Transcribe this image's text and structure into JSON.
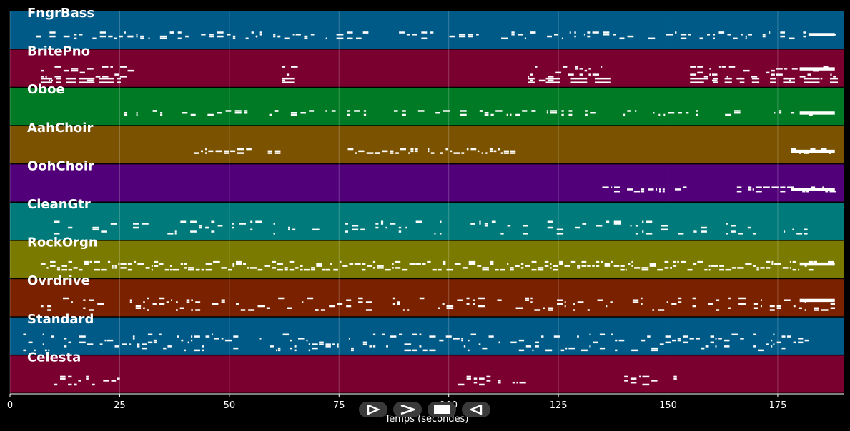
{
  "chart_data": {
    "type": "piano-roll",
    "xlabel": "Temps (secondes)",
    "xlim": [
      0,
      190
    ],
    "xticks": [
      0,
      25,
      50,
      75,
      100,
      125,
      150,
      175
    ],
    "grid": true,
    "note_color": "#ffffff",
    "tracks": [
      {
        "name": "FngrBass",
        "color": "#005a87",
        "pitch_range": [
          0,
          10
        ],
        "active": [
          [
            6,
            188
          ]
        ],
        "density": 0.55,
        "rows": [
          3,
          6
        ],
        "long_ends": [
          [
            182,
            188
          ]
        ]
      },
      {
        "name": "BritePno",
        "color": "#7a0030",
        "pitch_range": [
          0,
          10
        ],
        "active": [
          [
            7,
            27
          ],
          [
            62,
            65
          ],
          [
            118,
            135
          ],
          [
            155,
            188
          ]
        ],
        "density": 0.8,
        "rows": [
          1,
          8
        ],
        "long_ends": [
          [
            180,
            188
          ]
        ],
        "extra": [
          [
            7,
            188
          ]
        ]
      },
      {
        "name": "Oboe",
        "color": "#007a25",
        "pitch_range": [
          0,
          10
        ],
        "active": [
          [
            26,
            135
          ],
          [
            138,
            188
          ]
        ],
        "density": 0.45,
        "rows": [
          4,
          6
        ],
        "long_ends": [
          [
            180,
            188
          ]
        ]
      },
      {
        "name": "AahChoir",
        "color": "#7a5200",
        "pitch_range": [
          0,
          10
        ],
        "active": [
          [
            42,
            55
          ],
          [
            57,
            61
          ],
          [
            77,
            115
          ],
          [
            178,
            188
          ]
        ],
        "density": 0.75,
        "rows": [
          4,
          6
        ],
        "long_ends": [
          [
            178,
            188
          ]
        ]
      },
      {
        "name": "OohChoir",
        "color": "#52007a",
        "pitch_range": [
          0,
          10
        ],
        "active": [
          [
            135,
            154
          ],
          [
            164,
            188
          ]
        ],
        "density": 0.75,
        "rows": [
          4,
          6
        ],
        "long_ends": [
          [
            178,
            188
          ]
        ]
      },
      {
        "name": "CleanGtr",
        "color": "#007a7a",
        "pitch_range": [
          0,
          10
        ],
        "active": [
          [
            7,
            182
          ]
        ],
        "density": 0.5,
        "rows": [
          2,
          8
        ],
        "long_ends": []
      },
      {
        "name": "RockOrgn",
        "color": "#7a7a00",
        "pitch_range": [
          0,
          10
        ],
        "active": [
          [
            7,
            188
          ]
        ],
        "density": 0.85,
        "rows": [
          3,
          7
        ],
        "long_ends": [
          [
            180,
            188
          ]
        ]
      },
      {
        "name": "Ovrdrive",
        "color": "#7a2200",
        "pitch_range": [
          0,
          10
        ],
        "active": [
          [
            7,
            188
          ]
        ],
        "density": 0.6,
        "rows": [
          2,
          8
        ],
        "long_ends": [
          [
            180,
            188
          ]
        ]
      },
      {
        "name": "Standard",
        "color": "#005a87",
        "pitch_range": [
          0,
          10
        ],
        "active": [
          [
            3,
            182
          ]
        ],
        "density": 0.75,
        "rows": [
          1,
          9
        ],
        "long_ends": []
      },
      {
        "name": "Celesta",
        "color": "#7a0030",
        "pitch_range": [
          0,
          10
        ],
        "active": [
          [
            10,
            25
          ],
          [
            102,
            117
          ],
          [
            140,
            154
          ]
        ],
        "density": 0.7,
        "rows": [
          3,
          7
        ],
        "long_ends": []
      }
    ]
  },
  "controls": [
    {
      "name": "play-button",
      "glyph": "play"
    },
    {
      "name": "next-button",
      "glyph": "next"
    },
    {
      "name": "stop-button",
      "glyph": "stop"
    },
    {
      "name": "rewind-button",
      "glyph": "rewind"
    }
  ]
}
